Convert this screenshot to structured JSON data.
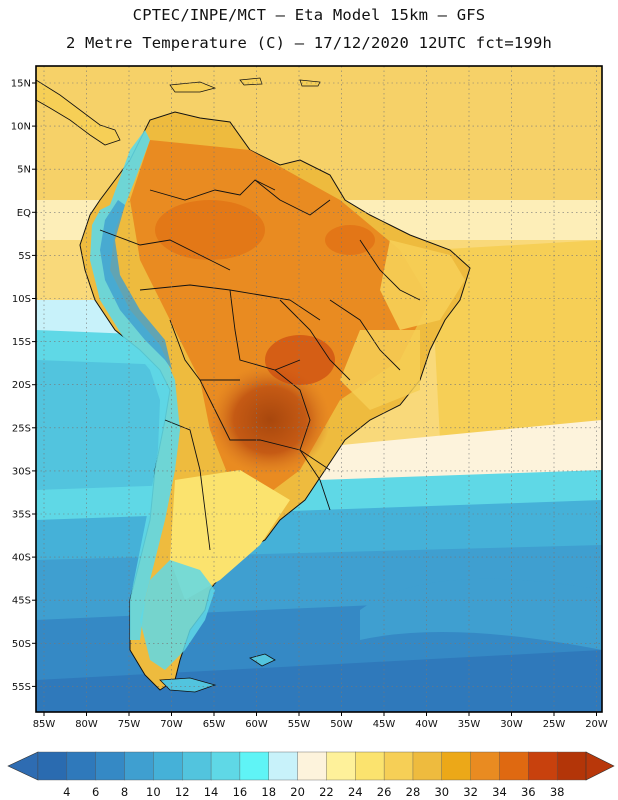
{
  "header": {
    "line1": "CPTEC/INPE/MCT –  Eta Model 15km – GFS",
    "line2": "2 Metre Temperature (C) – 17/12/2020 12UTC fct=199h"
  },
  "map": {
    "region": "South America",
    "lat_labels": [
      "15N",
      "10N",
      "5N",
      "EQ",
      "5S",
      "10S",
      "15S",
      "20S",
      "25S",
      "30S",
      "35S",
      "40S",
      "45S",
      "50S",
      "55S"
    ],
    "lon_labels": [
      "85W",
      "80W",
      "75W",
      "70W",
      "65W",
      "60W",
      "55W",
      "50W",
      "45W",
      "40W",
      "35W",
      "30W",
      "25W",
      "20W"
    ]
  },
  "colorbar": {
    "values": [
      "4",
      "6",
      "8",
      "10",
      "12",
      "14",
      "16",
      "18",
      "20",
      "22",
      "24",
      "26",
      "28",
      "30",
      "32",
      "34",
      "36",
      "38"
    ],
    "colors": [
      "#2a6bb0",
      "#2f79bb",
      "#3589c5",
      "#3f9fd0",
      "#45b1d8",
      "#52c4de",
      "#5fd8e6",
      "#5ff4f6",
      "#c8f2fa",
      "#fdf3dc",
      "#fef19a",
      "#fbe36e",
      "#f6cf56",
      "#eebb3e",
      "#eca818",
      "#e98b21",
      "#df6911",
      "#c8410d",
      "#b33508"
    ],
    "low_arrow_color": "#2e6cb2",
    "high_arrow_color": "#b8370a"
  }
}
